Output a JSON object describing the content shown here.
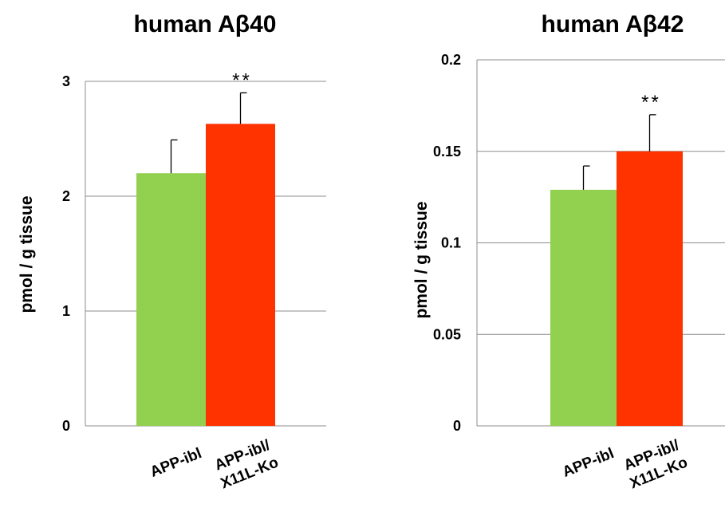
{
  "chart_data": [
    {
      "type": "bar",
      "title": "human Aβ40",
      "xlabel": "",
      "ylabel": "pmol / g tissue",
      "ylim": [
        0,
        3
      ],
      "yticks": [
        "0",
        "1",
        "2",
        "3"
      ],
      "ytick_values": [
        0,
        1,
        2,
        3
      ],
      "grid": true,
      "categories": [
        "APP-ibl",
        "APP-ibl/ X11L-Ko"
      ],
      "category_lines": [
        [
          "APP-ibl"
        ],
        [
          "APP-ibl/",
          "X11L-Ko"
        ]
      ],
      "values": [
        2.2,
        2.63
      ],
      "error_upper": [
        0.29,
        0.27
      ],
      "colors": [
        "#92d050",
        "#ff3300"
      ],
      "annotation": "**"
    },
    {
      "type": "bar",
      "title": "human Aβ42",
      "xlabel": "",
      "ylabel": "pmol / g tissue",
      "ylim": [
        0,
        0.2
      ],
      "yticks": [
        "0",
        "0.05",
        "0.1",
        "0.15",
        "0.2"
      ],
      "ytick_values": [
        0,
        0.05,
        0.1,
        0.15,
        0.2
      ],
      "grid": true,
      "categories": [
        "APP-ibl",
        "APP-ibl/ X11L-Ko"
      ],
      "category_lines": [
        [
          "APP-ibl"
        ],
        [
          "APP-ibl/",
          "X11L-Ko"
        ]
      ],
      "values": [
        0.129,
        0.15
      ],
      "error_upper": [
        0.013,
        0.02
      ],
      "colors": [
        "#92d050",
        "#ff3300"
      ],
      "annotation": "**"
    }
  ]
}
